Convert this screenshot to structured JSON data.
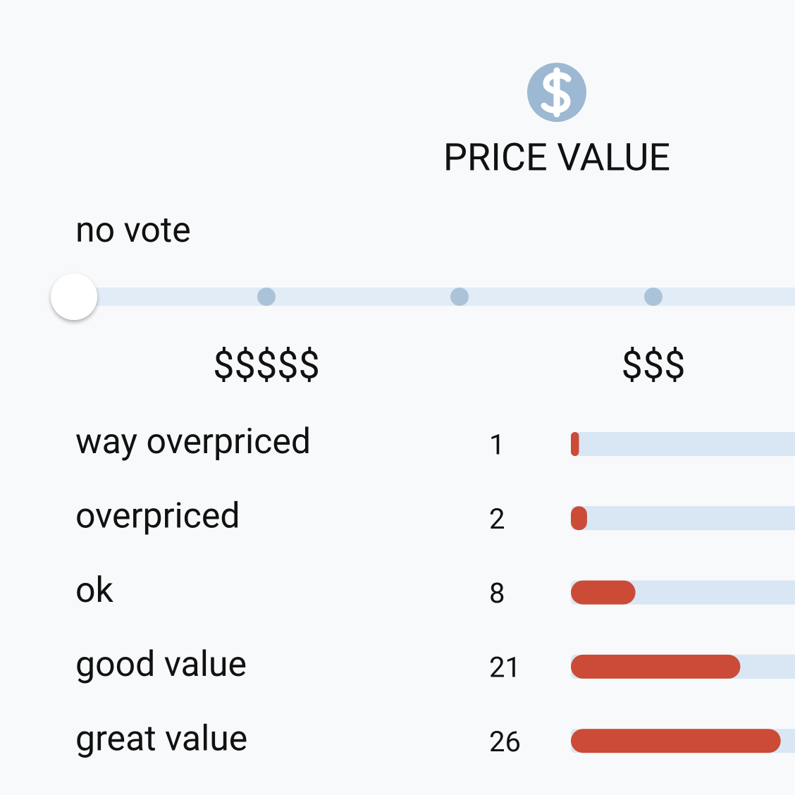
{
  "header": {
    "title": "PRICE VALUE"
  },
  "slider": {
    "value_label": "no vote",
    "stops": [
      "$$$$$",
      "$$$"
    ]
  },
  "votes": [
    {
      "label": "way overpriced",
      "count": 1
    },
    {
      "label": "overpriced",
      "count": 2
    },
    {
      "label": "ok",
      "count": 8
    },
    {
      "label": "good value",
      "count": 21
    },
    {
      "label": "great value",
      "count": 26
    }
  ]
}
